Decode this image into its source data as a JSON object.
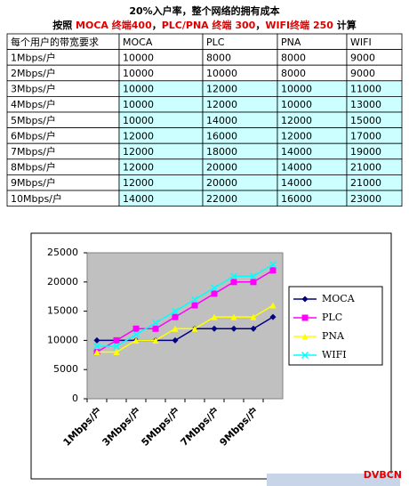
{
  "title": "20%入户率，整个网络的拥有成本",
  "subtitle": [
    {
      "text": "按照 ",
      "color": "#000000"
    },
    {
      "text": "MOCA 终端400",
      "color": "#e00000"
    },
    {
      "text": "，",
      "color": "#000000"
    },
    {
      "text": "PLC/PNA 终端 300",
      "color": "#e00000"
    },
    {
      "text": "，",
      "color": "#000000"
    },
    {
      "text": "WIFI终端 250",
      "color": "#e00000"
    },
    {
      "text": " 计算",
      "color": "#000000"
    }
  ],
  "table": {
    "header": [
      "每个用户的带宽要求",
      "MOCA",
      "PLC",
      "PNA",
      "WIFI"
    ],
    "rows": [
      [
        "1Mbps/户",
        "10000",
        "8000",
        "8000",
        "9000"
      ],
      [
        "2Mbps/户",
        "10000",
        "10000",
        "8000",
        "9000"
      ],
      [
        "3Mbps/户",
        "10000",
        "12000",
        "10000",
        "11000"
      ],
      [
        "4Mbps/户",
        "10000",
        "12000",
        "10000",
        "13000"
      ],
      [
        "5Mbps/户",
        "10000",
        "14000",
        "12000",
        "15000"
      ],
      [
        "6Mbps/户",
        "12000",
        "16000",
        "12000",
        "17000"
      ],
      [
        "7Mbps/户",
        "12000",
        "18000",
        "14000",
        "19000"
      ],
      [
        "8Mbps/户",
        "12000",
        "20000",
        "14000",
        "21000"
      ],
      [
        "9Mbps/户",
        "12000",
        "20000",
        "14000",
        "21000"
      ],
      [
        "10Mbps/户",
        "14000",
        "22000",
        "16000",
        "23000"
      ]
    ]
  },
  "chart_data": {
    "type": "line",
    "categories": [
      "1Mbps/户",
      null,
      "3Mbps/户",
      null,
      "5Mbps/户",
      null,
      "7Mbps/户",
      null,
      "9Mbps/户",
      null
    ],
    "series": [
      {
        "name": "MOCA",
        "color": "#000080",
        "marker": "diamond",
        "values": [
          10000,
          10000,
          10000,
          10000,
          10000,
          12000,
          12000,
          12000,
          12000,
          14000
        ]
      },
      {
        "name": "PLC",
        "color": "#ff00ff",
        "marker": "square",
        "values": [
          8000,
          10000,
          12000,
          12000,
          14000,
          16000,
          18000,
          20000,
          20000,
          22000
        ]
      },
      {
        "name": "PNA",
        "color": "#ffff00",
        "marker": "triangle",
        "values": [
          8000,
          8000,
          10000,
          10000,
          12000,
          12000,
          14000,
          14000,
          14000,
          16000
        ]
      },
      {
        "name": "WIFI",
        "color": "#00ffff",
        "marker": "x",
        "values": [
          9000,
          9000,
          11000,
          13000,
          15000,
          17000,
          19000,
          21000,
          21000,
          23000
        ]
      }
    ],
    "ylim": [
      0,
      25000
    ],
    "yticks": [
      0,
      5000,
      10000,
      15000,
      20000,
      25000
    ],
    "grid": false,
    "legend": "right"
  },
  "watermark": "DVBCN"
}
